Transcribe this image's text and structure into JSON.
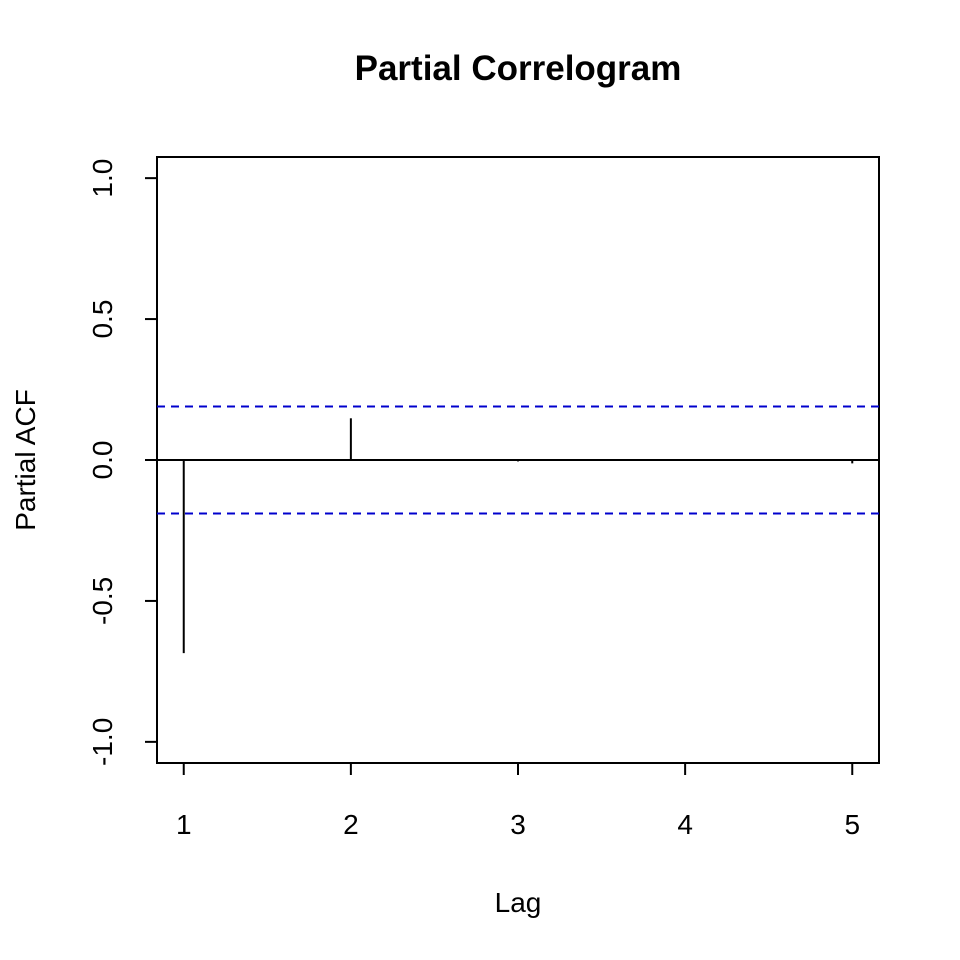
{
  "chart_data": {
    "type": "bar",
    "title": "Partial Correlogram",
    "xlabel": "Lag",
    "ylabel": "Partial ACF",
    "x": [
      1,
      2,
      3,
      4,
      5
    ],
    "values": [
      -0.685,
      0.148,
      -0.005,
      0.0,
      -0.012
    ],
    "xlim": [
      0.84,
      5.16
    ],
    "ylim": [
      -1.075,
      1.075
    ],
    "x_ticks": [
      1,
      2,
      3,
      4,
      5
    ],
    "x_tick_labels": [
      "1",
      "2",
      "3",
      "4",
      "5"
    ],
    "y_ticks": [
      -1.0,
      -0.5,
      0.0,
      0.5,
      1.0
    ],
    "y_tick_labels": [
      "-1.0",
      "-0.5",
      "0.0",
      "0.5",
      "1.0"
    ],
    "confidence_bounds": [
      0.19,
      -0.19
    ],
    "colors": {
      "spike": "#000000",
      "ci": "#0000cd",
      "zero_line": "#000000"
    },
    "grid": false,
    "legend": "none"
  }
}
